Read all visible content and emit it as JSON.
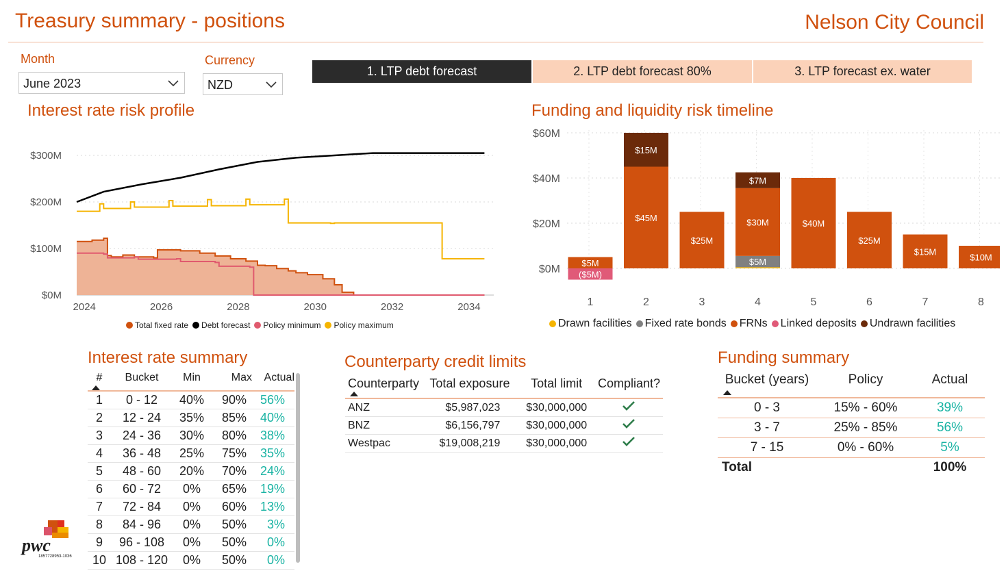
{
  "header": {
    "title": "Treasury summary - positions",
    "org": "Nelson City Council"
  },
  "filters": {
    "month_label": "Month",
    "month_value": "June 2023",
    "currency_label": "Currency",
    "currency_value": "NZD"
  },
  "tabs": [
    {
      "label": "1. LTP debt forecast",
      "active": true
    },
    {
      "label": "2. LTP debt forecast 80%",
      "active": false
    },
    {
      "label": "3. LTP forecast ex. water",
      "active": false
    }
  ],
  "colors": {
    "accent": "#d0510e",
    "teal": "#19b3a3",
    "fixed_fill": "#eeb396",
    "fixed_line": "#d0510e",
    "debt": "#000000",
    "pmin": "#e05a6e",
    "pmax": "#f5b400",
    "undrawn": "#6b2a0a",
    "frn": "#d0510e",
    "bonds": "#808080",
    "drawn": "#f5b400",
    "linked": "#e05a78"
  },
  "interest_chart": {
    "title": "Interest rate risk profile",
    "y_ticks": [
      "$300M",
      "$200M",
      "$100M",
      "$0M"
    ],
    "x_ticks": [
      "2024",
      "2026",
      "2028",
      "2030",
      "2032",
      "2034"
    ],
    "legend": [
      "Total fixed rate",
      "Debt forecast",
      "Policy minimum",
      "Policy maximum"
    ]
  },
  "chart_data": [
    {
      "type": "line",
      "title": "Interest rate risk profile",
      "ylim": [
        0,
        300
      ],
      "xlim": [
        2023.8,
        2034.5
      ],
      "series": [
        {
          "name": "Debt forecast",
          "x": [
            2023.8,
            2024.5,
            2025.5,
            2026.5,
            2027.5,
            2028.5,
            2029.5,
            2030.5,
            2031.5,
            2032.5,
            2033.5,
            2034.4
          ],
          "values": [
            200,
            222,
            238,
            252,
            270,
            286,
            295,
            300,
            305,
            305,
            305,
            305
          ]
        },
        {
          "name": "Policy maximum",
          "x": [
            2023.8,
            2024.4,
            2024.5,
            2025.2,
            2025.3,
            2026.2,
            2026.3,
            2027.2,
            2027.3,
            2028.2,
            2028.3,
            2029.2,
            2029.3,
            2030.4,
            2030.5,
            2033.2,
            2033.3,
            2034.4
          ],
          "values": [
            180,
            196,
            186,
            200,
            189,
            203,
            191,
            205,
            192,
            206,
            194,
            206,
            155,
            154,
            155,
            155,
            78,
            78
          ]
        },
        {
          "name": "Total fixed rate",
          "x": [
            2023.8,
            2024.2,
            2024.5,
            2024.6,
            2024.7,
            2025.0,
            2025.3,
            2025.8,
            2025.9,
            2026.5,
            2027.0,
            2027.4,
            2027.8,
            2028.2,
            2028.5,
            2028.7,
            2029.0,
            2029.3,
            2029.5,
            2029.8,
            2030.2,
            2030.5,
            2030.7,
            2031.0,
            2034.4
          ],
          "values": [
            115,
            118,
            122,
            85,
            82,
            86,
            82,
            80,
            97,
            95,
            90,
            84,
            78,
            73,
            64,
            63,
            57,
            52,
            48,
            44,
            35,
            22,
            6,
            0,
            0
          ]
        },
        {
          "name": "Policy minimum",
          "x": [
            2023.8,
            2024.5,
            2024.6,
            2025.3,
            2025.4,
            2026.4,
            2026.5,
            2027.4,
            2027.5,
            2028.3,
            2028.4,
            2034.4
          ],
          "values": [
            90,
            88,
            80,
            82,
            77,
            78,
            72,
            70,
            62,
            60,
            0,
            0
          ]
        }
      ]
    },
    {
      "type": "bar",
      "title": "Funding and liquidity risk timeline",
      "categories": [
        "1",
        "2",
        "3",
        "4",
        "5",
        "6",
        "7",
        "8"
      ],
      "ylim": [
        -10,
        60
      ],
      "y_ticks": [
        "$60M",
        "$40M",
        "$20M",
        "$0M"
      ],
      "series": [
        {
          "name": "Drawn facilities",
          "values": [
            0,
            0,
            0,
            0.5,
            0,
            0,
            0,
            0
          ]
        },
        {
          "name": "Fixed rate bonds",
          "values": [
            0,
            0,
            0,
            5,
            0,
            0,
            0,
            0
          ]
        },
        {
          "name": "FRNs",
          "values": [
            5,
            45,
            25,
            30,
            40,
            25,
            15,
            10
          ]
        },
        {
          "name": "Linked deposits",
          "values": [
            -5,
            0,
            0,
            0,
            0,
            0,
            0,
            0
          ]
        },
        {
          "name": "Undrawn facilities",
          "values": [
            0,
            15,
            0,
            7,
            0,
            0,
            0,
            0
          ]
        }
      ],
      "labels": {
        "FRNs": [
          "$5M",
          "$45M",
          "$25M",
          "$30M",
          "$40M",
          "$25M",
          "$15M",
          "$10M"
        ],
        "Fixed rate bonds": [
          "",
          "",
          "",
          "$5M",
          "",
          "",
          "",
          ""
        ],
        "Linked deposits": [
          "($5M)",
          "",
          "",
          "",
          "",
          "",
          "",
          ""
        ],
        "Undrawn facilities": [
          "",
          "$15M",
          "",
          "$7M",
          "",
          "",
          "",
          ""
        ]
      }
    }
  ],
  "interest_summary": {
    "title": "Interest rate summary",
    "headers": [
      "#",
      "Bucket",
      "Min",
      "Max",
      "Actual"
    ],
    "rows": [
      [
        "1",
        "0 - 12",
        "40%",
        "90%",
        "56%"
      ],
      [
        "2",
        "12 - 24",
        "35%",
        "85%",
        "40%"
      ],
      [
        "3",
        "24 - 36",
        "30%",
        "80%",
        "38%"
      ],
      [
        "4",
        "36 - 48",
        "25%",
        "75%",
        "35%"
      ],
      [
        "5",
        "48 - 60",
        "20%",
        "70%",
        "24%"
      ],
      [
        "6",
        "60 - 72",
        "0%",
        "65%",
        "19%"
      ],
      [
        "7",
        "72 - 84",
        "0%",
        "60%",
        "13%"
      ],
      [
        "8",
        "84 - 96",
        "0%",
        "50%",
        "3%"
      ],
      [
        "9",
        "96 - 108",
        "0%",
        "50%",
        "0%"
      ],
      [
        "10",
        "108 - 120",
        "0%",
        "50%",
        "0%"
      ]
    ]
  },
  "counterparty": {
    "title": "Counterparty credit limits",
    "headers": [
      "Counterparty",
      "Total exposure",
      "Total limit",
      "Compliant?"
    ],
    "rows": [
      [
        "ANZ",
        "$5,987,023",
        "$30,000,000"
      ],
      [
        "BNZ",
        "$6,156,797",
        "$30,000,000"
      ],
      [
        "Westpac",
        "$19,008,219",
        "$30,000,000"
      ]
    ]
  },
  "funding_summary": {
    "title": "Funding summary",
    "headers": [
      "Bucket (years)",
      "Policy",
      "Actual"
    ],
    "rows": [
      [
        "0 - 3",
        "15% - 60%",
        "39%"
      ],
      [
        "3 - 7",
        "25% - 85%",
        "56%"
      ],
      [
        "7 - 15",
        "0% - 60%",
        "5%"
      ]
    ],
    "total_label": "Total",
    "total_value": "100%"
  },
  "logo": {
    "text": "pwc",
    "code": "1857728953-1036"
  }
}
